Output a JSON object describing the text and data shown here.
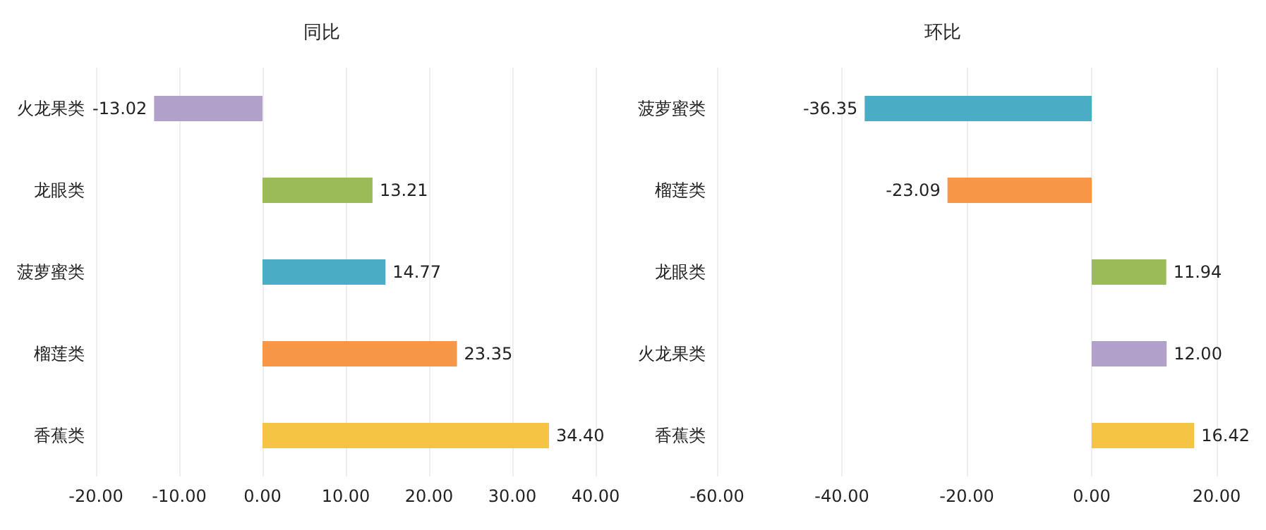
{
  "chart_data": [
    {
      "type": "bar",
      "orientation": "horizontal",
      "title": "同比",
      "categories": [
        "火龙果类",
        "龙眼类",
        "菠萝蜜类",
        "榴莲类",
        "香蕉类"
      ],
      "values": [
        -13.02,
        13.21,
        14.77,
        23.35,
        34.4
      ],
      "value_labels": [
        "-13.02",
        "13.21",
        "14.77",
        "23.35",
        "34.40"
      ],
      "colors": [
        "#b1a0c9",
        "#9bbb59",
        "#4bacc6",
        "#f79646",
        "#f5c445"
      ],
      "xlim": [
        -20,
        40
      ],
      "xticks": [
        {
          "value": -20,
          "label": "-20.00"
        },
        {
          "value": -10,
          "label": "-10.00"
        },
        {
          "value": 0,
          "label": "0.00"
        },
        {
          "value": 10,
          "label": "10.00"
        },
        {
          "value": 20,
          "label": "20.00"
        },
        {
          "value": 30,
          "label": "30.00"
        },
        {
          "value": 40,
          "label": "40.00"
        }
      ],
      "grid": "x"
    },
    {
      "type": "bar",
      "orientation": "horizontal",
      "title": "环比",
      "categories": [
        "菠萝蜜类",
        "榴莲类",
        "龙眼类",
        "火龙果类",
        "香蕉类"
      ],
      "values": [
        -36.35,
        -23.09,
        11.94,
        12.0,
        16.42
      ],
      "value_labels": [
        "-36.35",
        "-23.09",
        "11.94",
        "12.00",
        "16.42"
      ],
      "colors": [
        "#4bacc6",
        "#f79646",
        "#9bbb59",
        "#b1a0c9",
        "#f5c445"
      ],
      "xlim": [
        -60,
        20
      ],
      "xticks": [
        {
          "value": -60,
          "label": "-60.00"
        },
        {
          "value": -40,
          "label": "-40.00"
        },
        {
          "value": -20,
          "label": "-20.00"
        },
        {
          "value": 0,
          "label": "0.00"
        },
        {
          "value": 20,
          "label": "20.00"
        }
      ],
      "grid": "x"
    }
  ]
}
